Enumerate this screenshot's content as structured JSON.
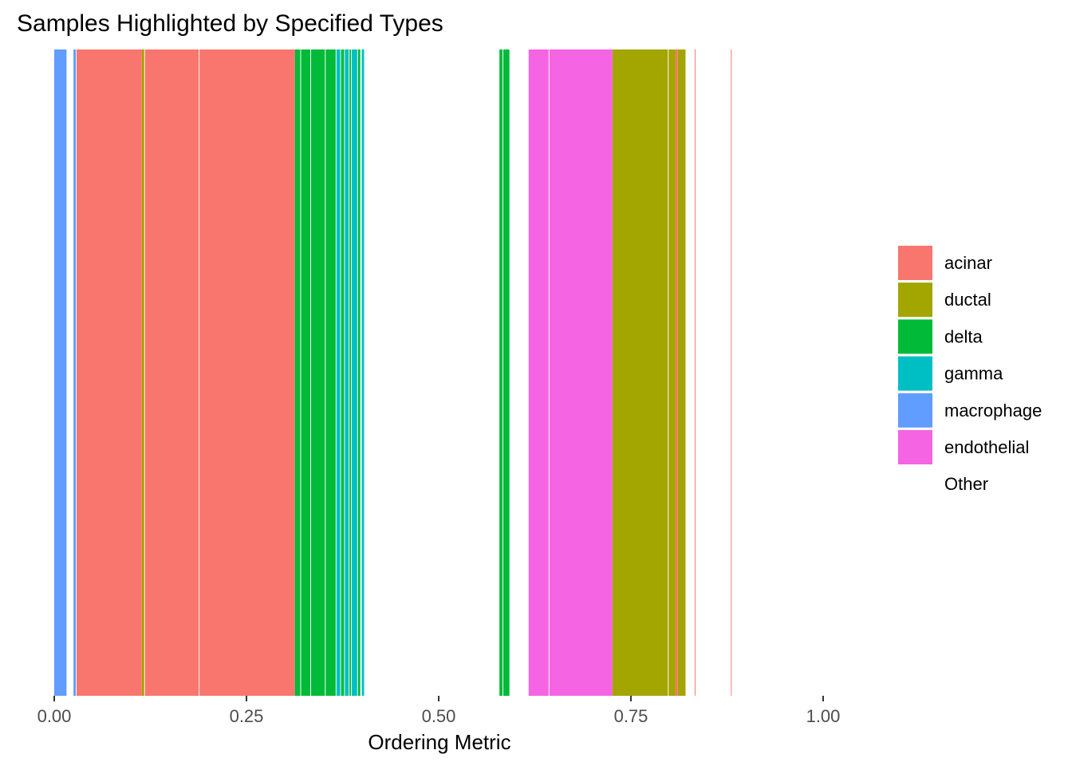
{
  "chart_data": {
    "type": "bar",
    "title": "Samples Highlighted by Specified Types",
    "xlabel": "Ordering Metric",
    "ylabel": "",
    "xlim": [
      0,
      1
    ],
    "x_ticks": [
      0,
      0.25,
      0.5,
      0.75,
      1
    ],
    "x_tick_labels": [
      "0.00",
      "0.25",
      "0.50",
      "0.75",
      "1.00"
    ],
    "grid": false,
    "legend_position": "right",
    "legend": [
      {
        "label": "acinar",
        "color": "#F8766D"
      },
      {
        "label": "ductal",
        "color": "#A3A500"
      },
      {
        "label": "delta",
        "color": "#00BA38"
      },
      {
        "label": "gamma",
        "color": "#00BFC4"
      },
      {
        "label": "macrophage",
        "color": "#619CFF"
      },
      {
        "label": "endothelial",
        "color": "#F564E3"
      },
      {
        "label": "Other",
        "color": "#FFFFFF"
      }
    ],
    "series": [
      {
        "type": "macrophage",
        "start": 0.0,
        "end": 0.016
      },
      {
        "type": "macrophage",
        "start": 0.025,
        "end": 0.028
      },
      {
        "type": "acinar",
        "start": 0.029,
        "end": 0.114
      },
      {
        "type": "ductal",
        "start": 0.114,
        "end": 0.117
      },
      {
        "type": "acinar",
        "start": 0.118,
        "end": 0.188
      },
      {
        "type": "acinar",
        "start": 0.189,
        "end": 0.313
      },
      {
        "type": "delta",
        "start": 0.313,
        "end": 0.32
      },
      {
        "type": "delta",
        "start": 0.321,
        "end": 0.333
      },
      {
        "type": "delta",
        "start": 0.334,
        "end": 0.352
      },
      {
        "type": "delta",
        "start": 0.353,
        "end": 0.366
      },
      {
        "type": "gamma",
        "start": 0.367,
        "end": 0.372
      },
      {
        "type": "delta",
        "start": 0.373,
        "end": 0.377
      },
      {
        "type": "gamma",
        "start": 0.378,
        "end": 0.383
      },
      {
        "type": "delta",
        "start": 0.384,
        "end": 0.386
      },
      {
        "type": "gamma",
        "start": 0.387,
        "end": 0.394
      },
      {
        "type": "delta",
        "start": 0.395,
        "end": 0.398
      },
      {
        "type": "gamma",
        "start": 0.4,
        "end": 0.403
      },
      {
        "type": "delta",
        "start": 0.579,
        "end": 0.583
      },
      {
        "type": "delta",
        "start": 0.584,
        "end": 0.592
      },
      {
        "type": "endothelial",
        "start": 0.617,
        "end": 0.643
      },
      {
        "type": "endothelial",
        "start": 0.644,
        "end": 0.726
      },
      {
        "type": "ductal",
        "start": 0.726,
        "end": 0.798
      },
      {
        "type": "ductal",
        "start": 0.799,
        "end": 0.808
      },
      {
        "type": "acinar",
        "start": 0.808,
        "end": 0.811
      },
      {
        "type": "ductal",
        "start": 0.811,
        "end": 0.821
      },
      {
        "type": "acinar",
        "start": 0.833,
        "end": 0.834
      },
      {
        "type": "acinar",
        "start": 0.88,
        "end": 0.881
      }
    ]
  }
}
